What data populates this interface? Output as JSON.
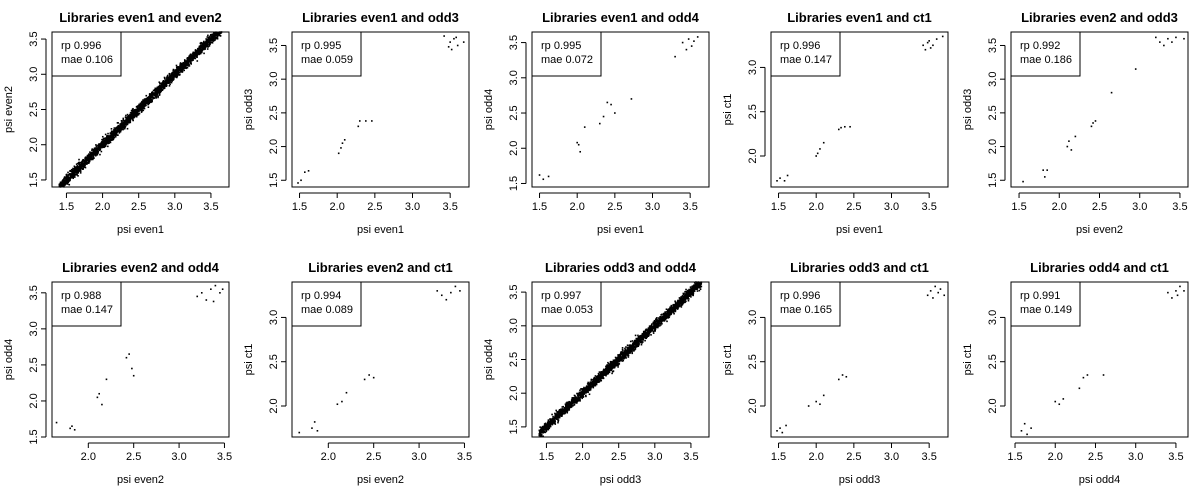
{
  "chart_data": [
    {
      "type": "scatter",
      "title": "Libraries even1 and even2",
      "xlabel": "psi even1",
      "ylabel": "psi even2",
      "xticks": [
        1.5,
        2.0,
        2.5,
        3.0,
        3.5
      ],
      "yticks": [
        1.5,
        2.0,
        2.5,
        3.0,
        3.5
      ],
      "xlim": [
        1.3,
        3.75
      ],
      "ylim": [
        1.4,
        3.6
      ],
      "dense": true,
      "legend": {
        "lines": [
          "rp 0.996",
          "mae 0.106"
        ],
        "position": "top-left"
      }
    },
    {
      "type": "scatter",
      "title": "Libraries even1 and odd3",
      "xlabel": "psi even1",
      "ylabel": "psi odd3",
      "xticks": [
        1.5,
        2.0,
        2.5,
        3.0,
        3.5
      ],
      "yticks": [
        1.5,
        2.0,
        2.5,
        3.0,
        3.5
      ],
      "xlim": [
        1.4,
        3.75
      ],
      "ylim": [
        1.4,
        3.7
      ],
      "points": [
        [
          1.48,
          1.46
        ],
        [
          1.52,
          1.5
        ],
        [
          1.57,
          1.62
        ],
        [
          1.62,
          1.64
        ],
        [
          2.02,
          1.9
        ],
        [
          2.05,
          1.98
        ],
        [
          2.07,
          2.05
        ],
        [
          2.1,
          2.1
        ],
        [
          2.28,
          2.3
        ],
        [
          2.3,
          2.38
        ],
        [
          2.38,
          2.38
        ],
        [
          2.46,
          2.38
        ],
        [
          3.42,
          3.64
        ],
        [
          3.48,
          3.48
        ],
        [
          3.5,
          3.55
        ],
        [
          3.52,
          3.44
        ],
        [
          3.55,
          3.6
        ],
        [
          3.58,
          3.62
        ],
        [
          3.6,
          3.5
        ],
        [
          3.68,
          3.55
        ]
      ],
      "legend": {
        "lines": [
          "rp 0.995",
          "mae 0.059"
        ],
        "position": "top-left"
      }
    },
    {
      "type": "scatter",
      "title": "Libraries even1 and odd4",
      "xlabel": "psi even1",
      "ylabel": "psi odd4",
      "xticks": [
        1.5,
        2.0,
        2.5,
        3.0,
        3.5
      ],
      "yticks": [
        1.5,
        2.0,
        2.5,
        3.0,
        3.5
      ],
      "xlim": [
        1.4,
        3.75
      ],
      "ylim": [
        1.45,
        3.65
      ],
      "points": [
        [
          1.5,
          1.62
        ],
        [
          1.55,
          1.56
        ],
        [
          1.62,
          1.6
        ],
        [
          2.0,
          2.08
        ],
        [
          2.02,
          2.05
        ],
        [
          2.04,
          1.95
        ],
        [
          2.1,
          2.3
        ],
        [
          2.3,
          2.35
        ],
        [
          2.35,
          2.45
        ],
        [
          2.4,
          2.65
        ],
        [
          2.45,
          2.62
        ],
        [
          2.5,
          2.5
        ],
        [
          2.72,
          2.7
        ],
        [
          3.3,
          3.3
        ],
        [
          3.4,
          3.5
        ],
        [
          3.45,
          3.4
        ],
        [
          3.48,
          3.55
        ],
        [
          3.52,
          3.45
        ],
        [
          3.55,
          3.52
        ],
        [
          3.6,
          3.58
        ]
      ],
      "legend": {
        "lines": [
          "rp 0.995",
          "mae 0.072"
        ],
        "position": "top-left"
      }
    },
    {
      "type": "scatter",
      "title": "Libraries even1 and ct1",
      "xlabel": "psi even1",
      "ylabel": "psi ct1",
      "xticks": [
        1.5,
        2.0,
        2.5,
        3.0,
        3.5
      ],
      "yticks": [
        2.0,
        2.5,
        3.0
      ],
      "xlim": [
        1.4,
        3.75
      ],
      "ylim": [
        1.65,
        3.4
      ],
      "points": [
        [
          1.48,
          1.72
        ],
        [
          1.52,
          1.75
        ],
        [
          1.58,
          1.72
        ],
        [
          1.62,
          1.78
        ],
        [
          2.0,
          2.0
        ],
        [
          2.02,
          2.03
        ],
        [
          2.05,
          2.08
        ],
        [
          2.1,
          2.15
        ],
        [
          2.3,
          2.3
        ],
        [
          2.33,
          2.32
        ],
        [
          2.38,
          2.33
        ],
        [
          2.45,
          2.33
        ],
        [
          3.42,
          3.25
        ],
        [
          3.45,
          3.2
        ],
        [
          3.48,
          3.28
        ],
        [
          3.5,
          3.3
        ],
        [
          3.52,
          3.22
        ],
        [
          3.55,
          3.25
        ],
        [
          3.6,
          3.32
        ],
        [
          3.68,
          3.35
        ]
      ],
      "legend": {
        "lines": [
          "rp 0.996",
          "mae 0.147"
        ],
        "position": "top-left"
      }
    },
    {
      "type": "scatter",
      "title": "Libraries even2 and odd3",
      "xlabel": "psi even2",
      "ylabel": "psi odd3",
      "xticks": [
        1.5,
        2.0,
        2.5,
        3.0,
        3.5
      ],
      "yticks": [
        1.5,
        2.0,
        2.5,
        3.0,
        3.5
      ],
      "xlim": [
        1.4,
        3.6
      ],
      "ylim": [
        1.4,
        3.7
      ],
      "points": [
        [
          1.55,
          1.48
        ],
        [
          1.8,
          1.65
        ],
        [
          1.82,
          1.55
        ],
        [
          1.85,
          1.65
        ],
        [
          2.1,
          2.0
        ],
        [
          2.12,
          2.08
        ],
        [
          2.15,
          1.95
        ],
        [
          2.2,
          2.15
        ],
        [
          2.4,
          2.3
        ],
        [
          2.42,
          2.35
        ],
        [
          2.45,
          2.38
        ],
        [
          2.65,
          2.8
        ],
        [
          2.95,
          3.15
        ],
        [
          3.2,
          3.62
        ],
        [
          3.25,
          3.55
        ],
        [
          3.3,
          3.5
        ],
        [
          3.35,
          3.6
        ],
        [
          3.4,
          3.55
        ],
        [
          3.45,
          3.62
        ],
        [
          3.55,
          3.6
        ]
      ],
      "legend": {
        "lines": [
          "rp 0.992",
          "mae 0.186"
        ],
        "position": "top-left"
      }
    },
    {
      "type": "scatter",
      "title": "Libraries even2 and odd4",
      "xlabel": "psi even2",
      "ylabel": "psi odd4",
      "xticks": [
        2.0,
        2.5,
        3.0,
        3.5
      ],
      "yticks": [
        1.5,
        2.0,
        2.5,
        3.0,
        3.5
      ],
      "xlim": [
        1.6,
        3.55
      ],
      "ylim": [
        1.5,
        3.65
      ],
      "points": [
        [
          1.65,
          1.7
        ],
        [
          1.8,
          1.62
        ],
        [
          1.82,
          1.65
        ],
        [
          1.85,
          1.6
        ],
        [
          2.1,
          2.05
        ],
        [
          2.12,
          2.1
        ],
        [
          2.15,
          1.95
        ],
        [
          2.2,
          2.3
        ],
        [
          2.42,
          2.6
        ],
        [
          2.45,
          2.65
        ],
        [
          2.48,
          2.45
        ],
        [
          2.5,
          2.35
        ],
        [
          3.2,
          3.45
        ],
        [
          3.25,
          3.5
        ],
        [
          3.3,
          3.4
        ],
        [
          3.35,
          3.55
        ],
        [
          3.38,
          3.38
        ],
        [
          3.4,
          3.6
        ],
        [
          3.45,
          3.5
        ],
        [
          3.48,
          3.55
        ]
      ],
      "legend": {
        "lines": [
          "rp 0.988",
          "mae 0.147"
        ],
        "position": "top-left"
      }
    },
    {
      "type": "scatter",
      "title": "Libraries even2 and ct1",
      "xlabel": "psi even2",
      "ylabel": "psi ct1",
      "xticks": [
        2.0,
        2.5,
        3.0,
        3.5
      ],
      "yticks": [
        2.0,
        2.5,
        3.0
      ],
      "xlim": [
        1.6,
        3.55
      ],
      "ylim": [
        1.65,
        3.4
      ],
      "points": [
        [
          1.68,
          1.7
        ],
        [
          1.82,
          1.75
        ],
        [
          1.85,
          1.82
        ],
        [
          1.88,
          1.72
        ],
        [
          2.1,
          2.02
        ],
        [
          2.15,
          2.05
        ],
        [
          2.2,
          2.15
        ],
        [
          2.4,
          2.3
        ],
        [
          2.45,
          2.35
        ],
        [
          2.5,
          2.32
        ],
        [
          3.2,
          3.3
        ],
        [
          3.25,
          3.25
        ],
        [
          3.3,
          3.2
        ],
        [
          3.35,
          3.28
        ],
        [
          3.4,
          3.35
        ],
        [
          3.45,
          3.3
        ]
      ],
      "legend": {
        "lines": [
          "rp 0.994",
          "mae 0.089"
        ],
        "position": "top-left"
      }
    },
    {
      "type": "scatter",
      "title": "Libraries odd3 and odd4",
      "xlabel": "psi odd3",
      "ylabel": "psi odd4",
      "xticks": [
        1.5,
        2.0,
        2.5,
        3.0,
        3.5
      ],
      "yticks": [
        1.5,
        2.0,
        2.5,
        3.0,
        3.5
      ],
      "xlim": [
        1.3,
        3.75
      ],
      "ylim": [
        1.35,
        3.65
      ],
      "dense": true,
      "legend": {
        "lines": [
          "rp 0.997",
          "mae 0.053"
        ],
        "position": "top-left"
      }
    },
    {
      "type": "scatter",
      "title": "Libraries odd3 and ct1",
      "xlabel": "psi odd3",
      "ylabel": "psi ct1",
      "xticks": [
        1.5,
        2.0,
        2.5,
        3.0,
        3.5
      ],
      "yticks": [
        2.0,
        2.5,
        3.0
      ],
      "xlim": [
        1.4,
        3.75
      ],
      "ylim": [
        1.65,
        3.4
      ],
      "points": [
        [
          1.48,
          1.72
        ],
        [
          1.52,
          1.75
        ],
        [
          1.55,
          1.7
        ],
        [
          1.6,
          1.78
        ],
        [
          1.9,
          2.0
        ],
        [
          2.0,
          2.05
        ],
        [
          2.05,
          2.02
        ],
        [
          2.1,
          2.12
        ],
        [
          2.3,
          2.3
        ],
        [
          2.35,
          2.35
        ],
        [
          2.4,
          2.33
        ],
        [
          3.48,
          3.25
        ],
        [
          3.52,
          3.3
        ],
        [
          3.55,
          3.22
        ],
        [
          3.58,
          3.35
        ],
        [
          3.62,
          3.28
        ],
        [
          3.65,
          3.32
        ],
        [
          3.7,
          3.25
        ]
      ],
      "legend": {
        "lines": [
          "rp 0.996",
          "mae 0.165"
        ],
        "position": "top-left"
      }
    },
    {
      "type": "scatter",
      "title": "Libraries odd4 and ct1",
      "xlabel": "psi odd4",
      "ylabel": "psi ct1",
      "xticks": [
        1.5,
        2.0,
        2.5,
        3.0,
        3.5
      ],
      "yticks": [
        2.0,
        2.5,
        3.0
      ],
      "xlim": [
        1.45,
        3.65
      ],
      "ylim": [
        1.65,
        3.4
      ],
      "points": [
        [
          1.58,
          1.72
        ],
        [
          1.62,
          1.8
        ],
        [
          1.65,
          1.68
        ],
        [
          1.7,
          1.75
        ],
        [
          2.0,
          2.05
        ],
        [
          2.05,
          2.02
        ],
        [
          2.1,
          2.08
        ],
        [
          2.3,
          2.2
        ],
        [
          2.35,
          2.32
        ],
        [
          2.4,
          2.35
        ],
        [
          2.6,
          2.35
        ],
        [
          3.4,
          3.28
        ],
        [
          3.45,
          3.22
        ],
        [
          3.5,
          3.3
        ],
        [
          3.52,
          3.25
        ],
        [
          3.55,
          3.35
        ],
        [
          3.6,
          3.3
        ]
      ],
      "legend": {
        "lines": [
          "rp 0.991",
          "mae 0.149"
        ],
        "position": "top-left"
      }
    }
  ]
}
